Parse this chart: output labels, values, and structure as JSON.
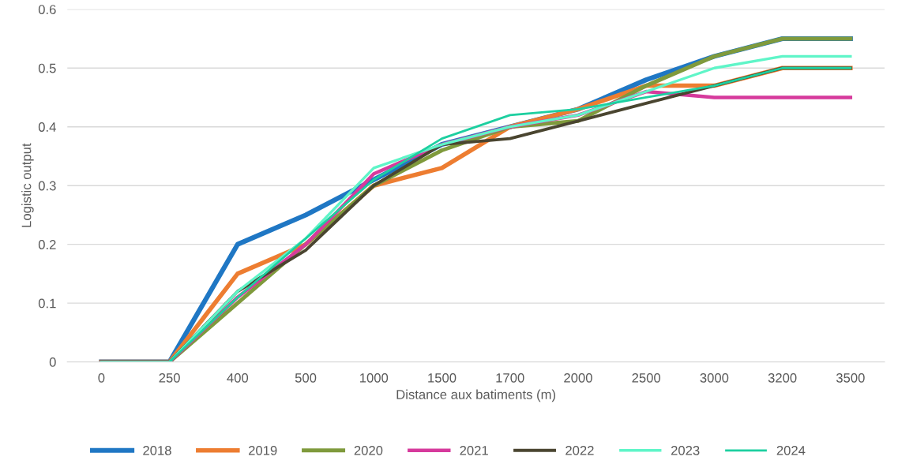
{
  "chart_data": {
    "type": "line",
    "xlabel": "Distance aux batiments (m)",
    "ylabel": "Logistic output",
    "categories": [
      "0",
      "250",
      "400",
      "500",
      "1000",
      "1500",
      "1700",
      "2000",
      "2500",
      "3000",
      "3200",
      "3500"
    ],
    "ylim": [
      0,
      0.6
    ],
    "yticks": [
      {
        "value": 0,
        "label": "0"
      },
      0.1,
      0.2,
      0.3,
      0.4,
      0.5,
      0.6
    ],
    "grid": "y",
    "legend": "bottom",
    "marker": "none",
    "line_style": "solid",
    "series": [
      {
        "name": "2018",
        "color": "#1f77c4",
        "values": [
          0,
          0,
          0.2,
          0.25,
          0.31,
          0.37,
          0.4,
          0.43,
          0.48,
          0.52,
          0.55,
          0.55
        ]
      },
      {
        "name": "2019",
        "color": "#ed7d31",
        "values": [
          0,
          0,
          0.15,
          0.2,
          0.3,
          0.33,
          0.4,
          0.43,
          0.47,
          0.47,
          0.5,
          0.5
        ]
      },
      {
        "name": "2020",
        "color": "#7f9a3c",
        "values": [
          0,
          0,
          0.1,
          0.2,
          0.3,
          0.36,
          0.4,
          0.41,
          0.47,
          0.52,
          0.55,
          0.55
        ]
      },
      {
        "name": "2021",
        "color": "#d63a9c",
        "values": [
          0,
          0,
          0.11,
          0.2,
          0.32,
          0.37,
          0.4,
          0.42,
          0.46,
          0.45,
          0.45,
          0.45
        ]
      },
      {
        "name": "2022",
        "color": "#4a4530",
        "values": [
          0,
          0,
          0.12,
          0.19,
          0.3,
          0.37,
          0.38,
          0.41,
          0.44,
          0.47,
          0.5,
          0.5
        ]
      },
      {
        "name": "2023",
        "color": "#5ff5c8",
        "values": [
          0,
          0,
          0.12,
          0.21,
          0.33,
          0.37,
          0.4,
          0.42,
          0.46,
          0.5,
          0.52,
          0.52
        ]
      },
      {
        "name": "2024",
        "color": "#1dcfa0",
        "values": [
          0,
          0,
          0.11,
          0.21,
          0.31,
          0.38,
          0.42,
          0.43,
          0.45,
          0.47,
          0.5,
          0.5
        ]
      }
    ]
  }
}
